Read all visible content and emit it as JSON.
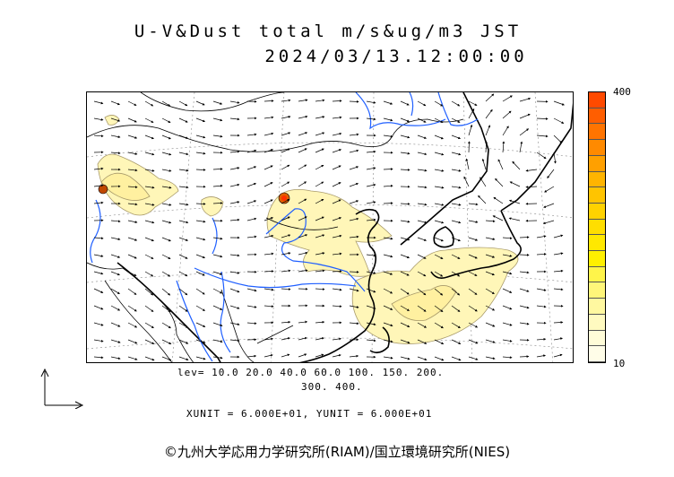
{
  "header": {
    "title": "U-V&Dust total m/s&ug/m3 JST",
    "timestamp": "2024/03/13.12:00:00"
  },
  "colorbar": {
    "max_label": "400",
    "min_label": "10",
    "colors": [
      "#ff4a00",
      "#ff5e00",
      "#ff7400",
      "#ff8a00",
      "#ffa000",
      "#ffb400",
      "#ffc400",
      "#ffd200",
      "#ffde00",
      "#ffe800",
      "#fff000",
      "#fff44a",
      "#fff67a",
      "#fff8a0",
      "#fffac0",
      "#fffcd8",
      "#fffde8"
    ]
  },
  "legend": {
    "levels_line1": "lev=  10.0  20.0  40.0  60.0  100.  150.  200.",
    "levels_line2": "300.  400."
  },
  "units": {
    "text": "XUNIT = 6.000E+01, YUNIT = 6.000E+01"
  },
  "credit": {
    "text": "©九州大学応用力学研究所(RIAM)/国立環境研究所(NIES)"
  },
  "map": {
    "dust_color": "#fff6b8",
    "dust_edge": "#a89a6a",
    "hotspot_color": "#c04800",
    "coast_color": "#000000",
    "river_color": "#1f5fff",
    "arrow_color": "#000000"
  }
}
